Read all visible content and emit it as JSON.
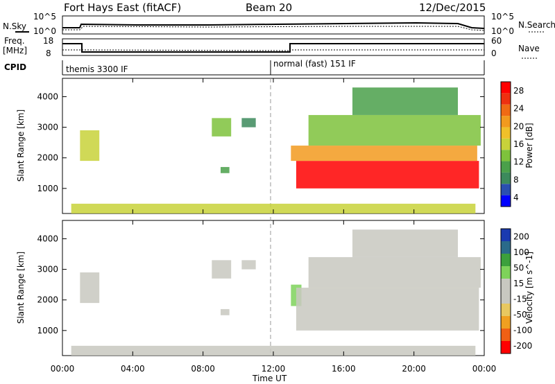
{
  "header": {
    "title": "Fort Hays East (fitACF)",
    "beam": "Beam 20",
    "date": "12/Dec/2015"
  },
  "strip_labels": {
    "nsky": "N.Sky",
    "nsky_top": "10^5",
    "nsky_bottom": "10^0",
    "nsearch": "N.Search",
    "nsearch_top": "10^5",
    "nsearch_bottom": "10^0",
    "freq_line1": "Freq.",
    "freq_line2": "[MHz]",
    "freq_top": "18",
    "freq_bottom": "8",
    "nave": "Nave",
    "nave_top": "60",
    "nave_bottom": "0",
    "cpid": "CPID"
  },
  "cpid_segments": [
    {
      "label": "themis 3300 IF",
      "start_hour": 0
    },
    {
      "label": "normal (fast) 151 IF",
      "start_hour": 12
    }
  ],
  "panels": [
    {
      "ylabel": "Slant Range [km]",
      "cbar_label": "Power [dB]",
      "cbar_ticks": [
        "28",
        "24",
        "20",
        "16",
        "12",
        "8",
        "4"
      ]
    },
    {
      "ylabel": "Slant Range [km]",
      "cbar_label": "Velocity [m s^-1]",
      "cbar_ticks": [
        "200",
        "100",
        "50",
        "15",
        "-15",
        "-50",
        "-100",
        "-200"
      ]
    }
  ],
  "x_ticks": [
    "00:00",
    "04:00",
    "08:00",
    "12:00",
    "16:00",
    "20:00",
    "00:00"
  ],
  "y_ticks": [
    "1000",
    "2000",
    "3000",
    "4000"
  ],
  "xlabel": "Time UT",
  "colors": {
    "power_scale": [
      "#0000ff",
      "#2a4fb0",
      "#3c8a5c",
      "#4aa04a",
      "#7ec23c",
      "#c8d23a",
      "#f0c02a",
      "#f29a1e",
      "#f06a14",
      "#ee3010",
      "#ff0000"
    ],
    "velocity_scale": [
      "#ff0000",
      "#f06014",
      "#f0a020",
      "#e8c860",
      "#c8c8c0",
      "#c8c8c0",
      "#7ed25a",
      "#3ca03c",
      "#2a6a8a",
      "#1a3ab0"
    ]
  },
  "chart_data": [
    {
      "type": "heatmap",
      "title": "Fort Hays East (fitACF)",
      "xlabel": "Time UT",
      "ylabel": "Slant Range [km]",
      "xlim": [
        0,
        24
      ],
      "ylim": [
        180,
        4600
      ],
      "colorbar": "Power [dB]",
      "clim": [
        0,
        30
      ],
      "regions": [
        {
          "t0": 1.0,
          "t1": 2.1,
          "r0": 1900,
          "r1": 2900,
          "value": 16
        },
        {
          "t0": 8.5,
          "t1": 9.6,
          "r0": 2700,
          "r1": 3300,
          "value": 12
        },
        {
          "t0": 9.0,
          "t1": 9.5,
          "r0": 1500,
          "r1": 1700,
          "value": 10
        },
        {
          "t0": 10.2,
          "t1": 11.0,
          "r0": 3000,
          "r1": 3300,
          "value": 8
        },
        {
          "t0": 13.3,
          "t1": 23.7,
          "r0": 1000,
          "r1": 1900,
          "value": 28
        },
        {
          "t0": 13.0,
          "t1": 23.6,
          "r0": 1900,
          "r1": 2400,
          "value": 20
        },
        {
          "t0": 14.0,
          "t1": 23.8,
          "r0": 2400,
          "r1": 3400,
          "value": 12
        },
        {
          "t0": 16.5,
          "t1": 22.5,
          "r0": 3400,
          "r1": 4300,
          "value": 10
        },
        {
          "t0": 0.5,
          "t1": 23.5,
          "r0": 180,
          "r1": 500,
          "value": 14
        }
      ]
    },
    {
      "type": "heatmap",
      "xlabel": "Time UT",
      "ylabel": "Slant Range [km]",
      "xlim": [
        0,
        24
      ],
      "ylim": [
        180,
        4600
      ],
      "colorbar": "Velocity [m s^-1]",
      "clim": [
        -200,
        200
      ],
      "regions": [
        {
          "t0": 1.0,
          "t1": 2.1,
          "r0": 1900,
          "r1": 2900,
          "value": 0
        },
        {
          "t0": 8.5,
          "t1": 9.6,
          "r0": 2700,
          "r1": 3300,
          "value": -30
        },
        {
          "t0": 9.0,
          "t1": 9.5,
          "r0": 1500,
          "r1": 1700,
          "value": 20
        },
        {
          "t0": 10.2,
          "t1": 11.0,
          "r0": 3000,
          "r1": 3300,
          "value": -20
        },
        {
          "t0": 13.0,
          "t1": 13.6,
          "r0": 1800,
          "r1": 2500,
          "value": 40
        },
        {
          "t0": 13.3,
          "t1": 23.7,
          "r0": 1000,
          "r1": 2400,
          "value": 0
        },
        {
          "t0": 14.0,
          "t1": 23.8,
          "r0": 2400,
          "r1": 3400,
          "value": 0
        },
        {
          "t0": 16.5,
          "t1": 22.5,
          "r0": 3400,
          "r1": 4300,
          "value": -40
        },
        {
          "t0": 0.5,
          "t1": 23.5,
          "r0": 180,
          "r1": 500,
          "value": -30
        }
      ]
    }
  ]
}
